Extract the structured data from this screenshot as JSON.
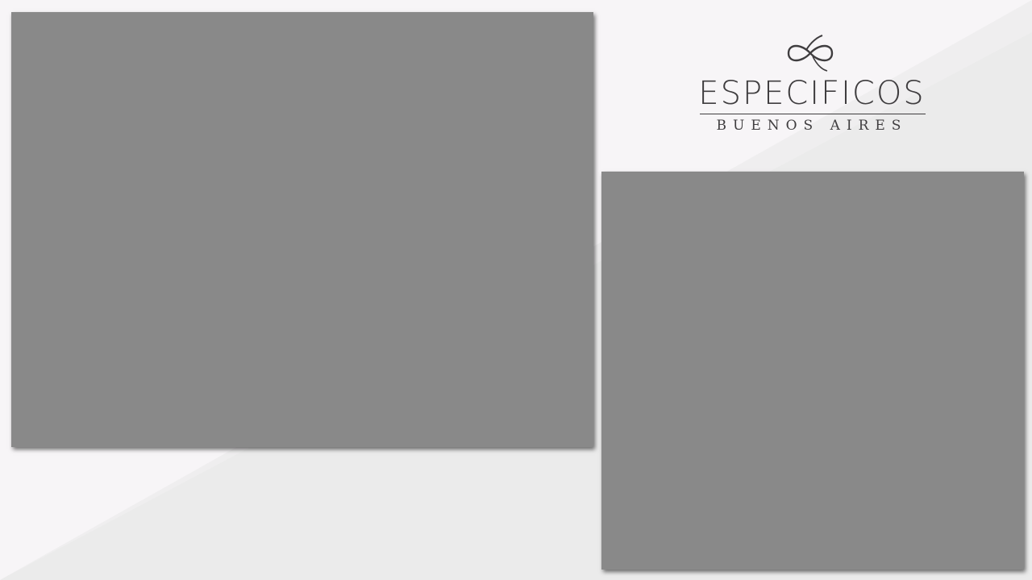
{
  "background": {
    "light_color": "#f7f5f7",
    "band_color": "#ebebeb"
  },
  "panels": {
    "main_color": "#898989",
    "side_color": "#898989"
  },
  "logo": {
    "wordmark": "ESPECIFICOS",
    "subtitle": "BUENOS AIRES",
    "mark_icon": "infinity-flourish-icon",
    "color": "#3f3d3f"
  }
}
